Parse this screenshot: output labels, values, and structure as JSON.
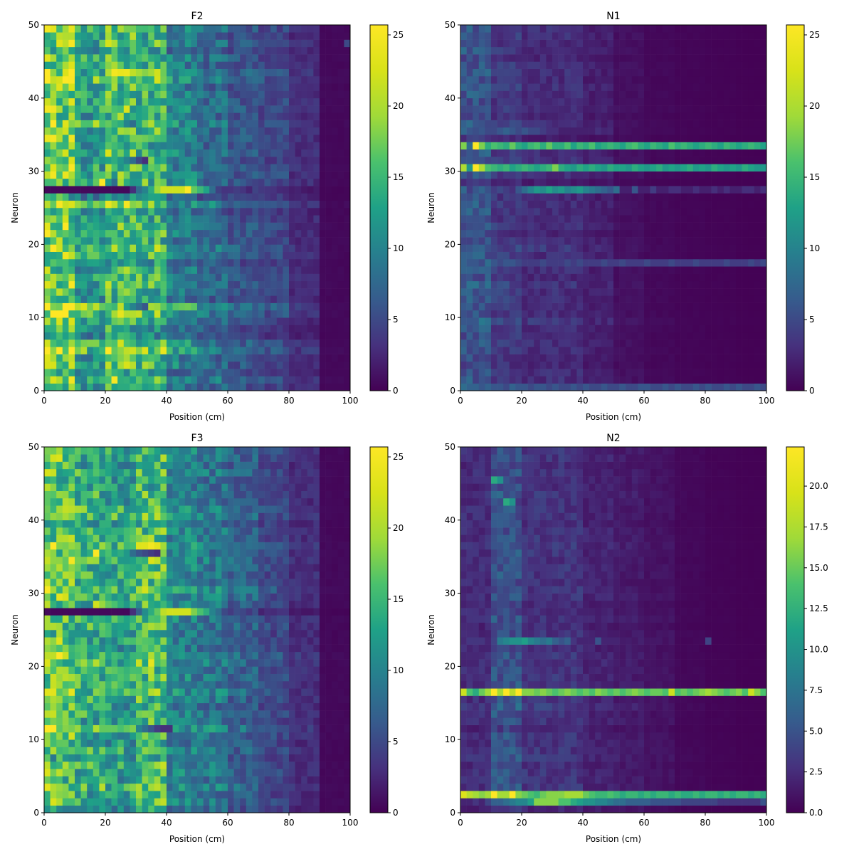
{
  "chart_data": [
    {
      "type": "heatmap",
      "title": "F2",
      "xlabel": "Position (cm)",
      "ylabel": "Neuron",
      "xlim": [
        0,
        100
      ],
      "ylim": [
        0,
        50
      ],
      "x_ticks": [
        0,
        20,
        40,
        60,
        80,
        100
      ],
      "y_ticks": [
        0,
        10,
        20,
        30,
        40,
        50
      ],
      "colormap": "viridis",
      "colorbar": {
        "min": 0,
        "max": 25.7,
        "ticks": [
          0,
          5,
          10,
          15,
          20,
          25
        ]
      },
      "bins": 50,
      "rows": 50,
      "profile": {
        "base": [
          19,
          13,
          17,
          15,
          10,
          8,
          6,
          5,
          3,
          0.5
        ],
        "rowScale": [
          0.9,
          1.1,
          0.8,
          1.0,
          0.9,
          1.2,
          1.1,
          0.7,
          0.8,
          0.9,
          1.1,
          1.3,
          0.8,
          0.9,
          1.0,
          1.0,
          0.9,
          0.8,
          1.0,
          1.1,
          0.9,
          1.0,
          1.0,
          0.9,
          0.8,
          1.2,
          0.7,
          0.6,
          1.0,
          1.0,
          1.0,
          0.9,
          1.0,
          0.9,
          1.0,
          1.0,
          1.1,
          0.9,
          1.0,
          1.0,
          1.0,
          0.9,
          1.2,
          1.1,
          0.9,
          1.0,
          0.8,
          1.0,
          0.9,
          1.0
        ]
      },
      "hot_rows": [
        {
          "row": 27,
          "start": 0,
          "end": 27,
          "values": [
            0.5,
            0.5,
            0.5,
            0.5,
            0.5,
            0.5,
            0.5,
            0.5,
            0.5,
            0.5,
            0.5,
            0.5,
            0.5,
            0.5,
            3,
            8,
            10,
            14,
            19,
            22,
            22,
            22,
            22,
            25.7,
            17,
            15,
            13,
            8
          ]
        },
        {
          "row": 28,
          "start": 8,
          "end": 11,
          "values": [
            17,
            25.7,
            12,
            8
          ]
        },
        {
          "row": 11,
          "start": 8,
          "end": 16,
          "values": [
            21,
            17,
            16,
            15,
            21,
            13,
            10,
            8,
            6
          ]
        },
        {
          "row": 36,
          "start": 8,
          "end": 14,
          "values": [
            21,
            16,
            17,
            15,
            14,
            10,
            8
          ]
        },
        {
          "row": 31,
          "start": 8,
          "end": 16,
          "values": [
            14,
            12,
            13,
            14,
            12,
            10,
            8,
            5,
            3
          ]
        }
      ],
      "outliers": [
        {
          "row": 47,
          "bin": 49,
          "value": 5
        }
      ],
      "seed": 11
    },
    {
      "type": "heatmap",
      "title": "N1",
      "xlabel": "Position (cm)",
      "ylabel": "Neuron",
      "xlim": [
        0,
        100
      ],
      "ylim": [
        0,
        50
      ],
      "x_ticks": [
        0,
        20,
        40,
        60,
        80,
        100
      ],
      "y_ticks": [
        0,
        10,
        20,
        30,
        40,
        50
      ],
      "colormap": "viridis",
      "colorbar": {
        "min": 0,
        "max": 25.7,
        "ticks": [
          0,
          5,
          10,
          15,
          20,
          25
        ]
      },
      "bins": 50,
      "rows": 50,
      "profile": {
        "base": [
          6,
          4,
          3,
          3,
          2,
          1,
          0.5,
          0.3,
          0.2,
          0.1
        ],
        "rowScale": [
          1.0,
          1.0,
          1.0,
          0.8,
          0.9,
          1.0,
          1.0,
          0.9,
          1.0,
          1.2,
          1.0,
          0.9,
          1.0,
          1.0,
          1.1,
          0.9,
          1.0,
          1.0,
          1.0,
          1.2,
          1.0,
          0.8,
          1.0,
          0.9,
          1.0,
          1.0,
          0.9,
          1.0,
          0.6,
          1.0,
          1.0,
          1.0,
          1.0,
          1.0,
          0.6,
          1.0,
          1.0,
          0.8,
          1.0,
          0.9,
          1.0,
          1.1,
          0.9,
          1.0,
          1.0,
          0.8,
          1.0,
          0.9,
          1.0,
          1.0
        ]
      },
      "hot_rows": [
        {
          "row": 33,
          "start": 0,
          "end": 49,
          "values": [
            18,
            8,
            25.7,
            18,
            14,
            16,
            15,
            14,
            17,
            14,
            13,
            15,
            16,
            14,
            17,
            14,
            14,
            16,
            13,
            15,
            14,
            16,
            13,
            14,
            15,
            14,
            13,
            15,
            16,
            14,
            13,
            15,
            14,
            13,
            16,
            14,
            15,
            14,
            13,
            14,
            15,
            14,
            13,
            15,
            14,
            13,
            14,
            15,
            14,
            13
          ]
        },
        {
          "row": 30,
          "start": 0,
          "end": 49,
          "values": [
            20,
            12,
            25.7,
            20,
            16,
            15,
            14,
            15,
            13,
            14,
            15,
            14,
            13,
            14,
            15,
            18,
            14,
            13,
            12,
            14,
            13,
            14,
            13,
            12,
            14,
            13,
            13,
            12,
            14,
            13,
            12,
            13,
            14,
            12,
            13,
            12,
            13,
            14,
            12,
            13,
            12,
            14,
            13,
            12,
            13,
            12,
            14,
            13,
            12,
            12
          ]
        },
        {
          "row": 27,
          "start": 6,
          "end": 49,
          "values": [
            5,
            4,
            3,
            6,
            8,
            10,
            12,
            11,
            13,
            11,
            12,
            10,
            11,
            12,
            10,
            9,
            8,
            7,
            6,
            8,
            2,
            2,
            6,
            2,
            2,
            4,
            2,
            2,
            3,
            3,
            2,
            2,
            3,
            2,
            2,
            3,
            2,
            3,
            2,
            2,
            3,
            3,
            2,
            3
          ]
        },
        {
          "row": 17,
          "start": 0,
          "end": 49,
          "values": [
            7,
            6,
            6,
            5,
            8,
            6,
            5,
            6,
            6,
            5,
            4,
            4,
            4,
            5,
            4,
            4,
            4,
            5,
            4,
            5,
            4,
            4,
            4,
            5,
            4,
            4,
            5,
            4,
            4,
            4,
            5,
            4,
            4,
            4,
            5,
            4,
            4,
            4,
            5,
            4,
            4,
            4,
            4,
            5,
            4,
            4,
            4,
            5,
            4,
            5
          ]
        },
        {
          "row": 0,
          "start": 0,
          "end": 49,
          "values": [
            8,
            7,
            7,
            6,
            7,
            6,
            6,
            5,
            7,
            6,
            6,
            5,
            6,
            6,
            5,
            6,
            5,
            5,
            6,
            5,
            6,
            5,
            5,
            6,
            5,
            5,
            6,
            5,
            5,
            6,
            6,
            5,
            5,
            6,
            5,
            6,
            5,
            5,
            6,
            5,
            6,
            5,
            5,
            6,
            5,
            6,
            5,
            5,
            6,
            5
          ]
        },
        {
          "row": 35,
          "start": 3,
          "end": 22,
          "values": [
            6,
            5,
            5,
            6,
            7,
            6,
            5,
            6,
            5,
            5,
            4,
            3,
            3,
            2,
            2,
            2,
            2,
            2,
            2,
            3
          ]
        }
      ],
      "outliers": [],
      "seed": 23
    },
    {
      "type": "heatmap",
      "title": "F3",
      "xlabel": "Position (cm)",
      "ylabel": "Neuron",
      "xlim": [
        0,
        100
      ],
      "ylim": [
        0,
        50
      ],
      "x_ticks": [
        0,
        20,
        40,
        60,
        80,
        100
      ],
      "y_ticks": [
        0,
        10,
        20,
        30,
        40,
        50
      ],
      "colormap": "viridis",
      "colorbar": {
        "min": 0,
        "max": 25.7,
        "ticks": [
          0,
          5,
          10,
          15,
          20,
          25
        ]
      },
      "bins": 50,
      "rows": 50,
      "profile": {
        "base": [
          17,
          14,
          13,
          16,
          10,
          9,
          7,
          5,
          3,
          0.5
        ],
        "rowScale": [
          0.8,
          1.0,
          0.9,
          1.1,
          0.9,
          1.0,
          1.0,
          0.8,
          1.0,
          0.9,
          1.0,
          1.2,
          0.9,
          1.0,
          0.9,
          1.0,
          1.1,
          1.0,
          1.0,
          1.0,
          1.1,
          1.2,
          0.9,
          1.0,
          0.9,
          1.0,
          1.0,
          0.6,
          1.0,
          1.1,
          1.2,
          1.0,
          1.0,
          1.0,
          1.1,
          1.0,
          1.2,
          1.0,
          1.0,
          0.9,
          1.1,
          1.1,
          0.9,
          1.0,
          0.9,
          0.9,
          1.0,
          0.9,
          1.0,
          1.0
        ]
      },
      "hot_rows": [
        {
          "row": 27,
          "start": 0,
          "end": 29,
          "values": [
            0.5,
            0.5,
            0.5,
            0.5,
            0.5,
            0.5,
            0.5,
            0.5,
            0.5,
            0.5,
            0.5,
            0.5,
            0.5,
            0.5,
            3,
            7,
            11,
            14,
            17,
            21,
            22,
            22,
            22,
            22,
            18,
            16,
            14,
            10,
            8,
            5
          ]
        },
        {
          "row": 28,
          "start": 8,
          "end": 13,
          "values": [
            22,
            19,
            17,
            16,
            14,
            12
          ]
        },
        {
          "row": 35,
          "start": 6,
          "end": 18,
          "values": [
            12,
            14,
            25.7,
            14,
            16,
            13,
            14,
            12,
            8,
            6,
            5,
            4,
            3
          ]
        },
        {
          "row": 11,
          "start": 6,
          "end": 20,
          "values": [
            14,
            14,
            20,
            17,
            17,
            17,
            16,
            17,
            18,
            10,
            8,
            6,
            4,
            3,
            3
          ]
        }
      ],
      "outliers": [],
      "seed": 37
    },
    {
      "type": "heatmap",
      "title": "N2",
      "xlabel": "Position (cm)",
      "ylabel": "Neuron",
      "xlim": [
        0,
        100
      ],
      "ylim": [
        0,
        50
      ],
      "x_ticks": [
        0,
        20,
        40,
        60,
        80,
        100
      ],
      "y_ticks": [
        0,
        10,
        20,
        30,
        40,
        50
      ],
      "colormap": "viridis",
      "colorbar": {
        "min": 0,
        "max": 22.4,
        "ticks": [
          0.0,
          2.5,
          5.0,
          7.5,
          10.0,
          12.5,
          15.0,
          17.5,
          20.0
        ]
      },
      "bins": 50,
      "rows": 50,
      "profile": {
        "base": [
          2.5,
          5,
          3,
          3,
          2,
          1.5,
          1,
          0.4,
          0.2,
          0.1
        ],
        "rowScale": [
          0.7,
          0.5,
          1.0,
          1.0,
          1.0,
          1.0,
          0.9,
          1.1,
          1.0,
          1.0,
          1.0,
          0.7,
          1.0,
          1.0,
          1.2,
          1.0,
          0.9,
          1.0,
          1.0,
          1.0,
          1.0,
          1.0,
          0.9,
          1.0,
          1.0,
          0.8,
          1.0,
          0.9,
          0.8,
          1.0,
          1.0,
          0.9,
          1.0,
          1.0,
          0.9,
          1.0,
          1.1,
          1.0,
          1.0,
          0.9,
          1.0,
          1.0,
          1.0,
          1.1,
          0.9,
          1.0,
          1.0,
          0.9,
          1.0,
          1.0
        ]
      },
      "hot_rows": [
        {
          "row": 16,
          "start": 0,
          "end": 49,
          "values": [
            19,
            14,
            12,
            15,
            17,
            22.4,
            17,
            22.4,
            18,
            22.4,
            16,
            16,
            15,
            16,
            15,
            14,
            15,
            16,
            15,
            14,
            15,
            14,
            16,
            15,
            14,
            15,
            14,
            15,
            16,
            15,
            14,
            15,
            15,
            14,
            19,
            14,
            15,
            14,
            15,
            16,
            17,
            16,
            15,
            14,
            15,
            16,
            14,
            19,
            16,
            14
          ]
        },
        {
          "row": 2,
          "start": 0,
          "end": 49,
          "values": [
            20,
            18,
            17,
            16,
            17,
            22.4,
            17,
            17,
            22.4,
            16,
            15,
            14,
            13,
            15,
            16,
            16,
            16,
            17,
            17,
            17,
            15,
            14,
            13,
            13,
            14,
            13,
            12,
            13,
            13,
            12,
            13,
            12,
            13,
            13,
            12,
            13,
            12,
            12,
            13,
            12,
            13,
            13,
            12,
            13,
            12,
            13,
            13,
            12,
            13,
            12
          ]
        },
        {
          "row": 1,
          "start": 0,
          "end": 49,
          "values": [
            2,
            2,
            3,
            2,
            4,
            6,
            6,
            7,
            8,
            9,
            9,
            11,
            16,
            16,
            16,
            16,
            14,
            14,
            12,
            11,
            10,
            10,
            9,
            9,
            8,
            7,
            7,
            6,
            6,
            6,
            6,
            5,
            5,
            5,
            5,
            5,
            4,
            4,
            4,
            4,
            4,
            4,
            3,
            3,
            3,
            3,
            3,
            3,
            3,
            5
          ]
        },
        {
          "row": 23,
          "start": 6,
          "end": 25,
          "values": [
            8,
            9,
            10,
            10,
            11,
            9,
            8,
            7,
            8,
            6,
            5,
            6,
            3,
            2,
            2,
            2,
            5,
            2,
            2,
            2
          ]
        },
        {
          "row": 45,
          "start": 5,
          "end": 10,
          "values": [
            12,
            10,
            5,
            4,
            3,
            3
          ]
        },
        {
          "row": 42,
          "start": 7,
          "end": 10,
          "values": [
            12,
            10,
            3,
            2
          ]
        }
      ],
      "outliers": [
        {
          "row": 23,
          "bin": 40,
          "value": 4
        }
      ],
      "seed": 53
    }
  ]
}
